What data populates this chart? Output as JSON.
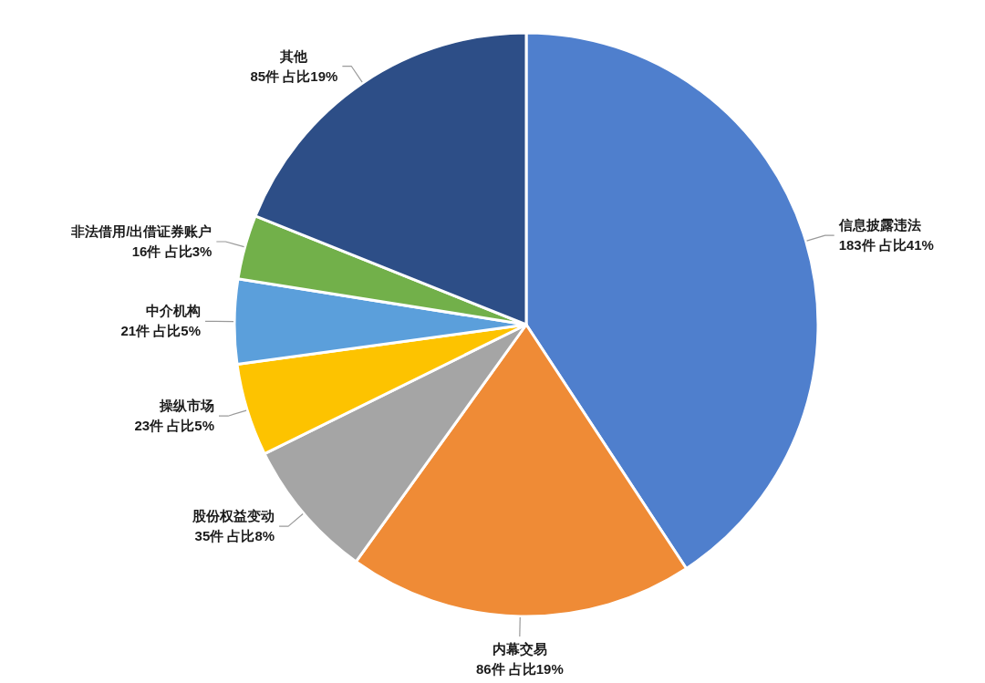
{
  "chart_data": {
    "type": "pie",
    "categories": [
      "信息披露违法",
      "内幕交易",
      "股份权益变动",
      "操纵市场",
      "中介机构",
      "非法借用/出借证券账户",
      "其他"
    ],
    "values": [
      183,
      86,
      35,
      23,
      21,
      16,
      85
    ],
    "colors": [
      "#4f7fcd",
      "#ef8b36",
      "#a5a5a5",
      "#fdc300",
      "#5b9fdb",
      "#72b04a",
      "#2d4e87"
    ],
    "value_labels": [
      "183件 占比41%",
      "86件 占比19%",
      "35件 占比8%",
      "23件 占比5%",
      "21件 占比5%",
      "16件 占比3%",
      "85件 占比19%"
    ]
  }
}
